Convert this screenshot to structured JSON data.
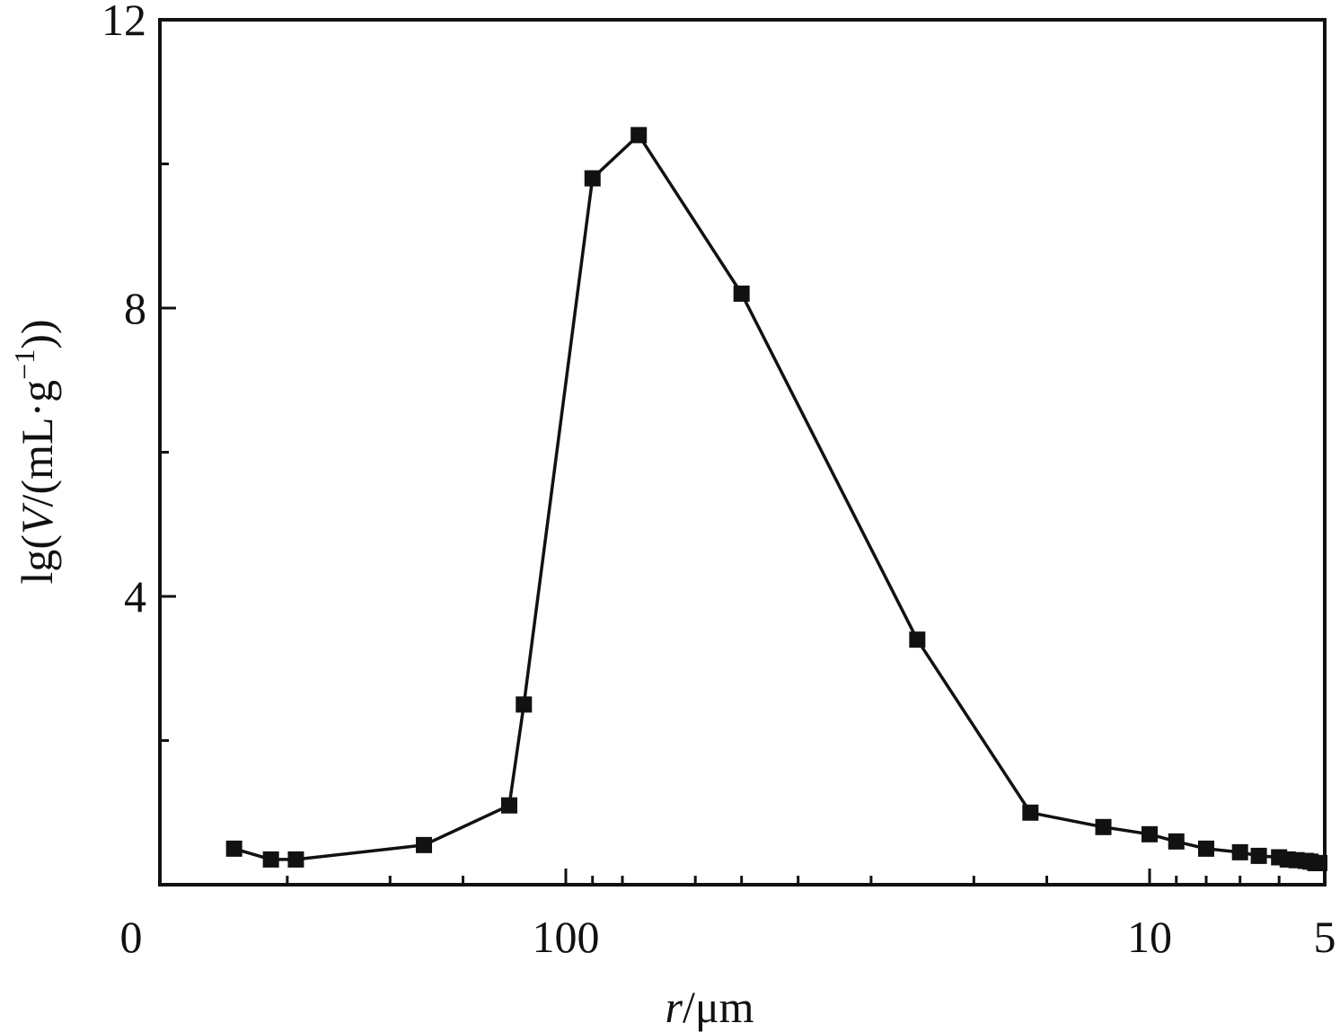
{
  "chart_data": {
    "type": "line",
    "title": "",
    "xlabel": {
      "var": "r",
      "rest": "/μm"
    },
    "ylabel": {
      "pre": "lg(",
      "var": "V",
      "mid": "/(mL·g",
      "sup": "−1",
      "post": "))"
    },
    "x_axis_scale": "log, reversed",
    "x_tick_labels": [
      "0",
      "100",
      "10",
      "5"
    ],
    "ylim": [
      0,
      12
    ],
    "y_ticks": [
      4,
      8,
      12
    ],
    "grid": false,
    "legend": "none",
    "marker": "filled-square",
    "line_color": "#111111",
    "series": [
      {
        "x": [
          370,
          320,
          290,
          175,
          125,
          118,
          90,
          75,
          50,
          25,
          16,
          12,
          10,
          9,
          8,
          7,
          6.5,
          6,
          5.8,
          5.6,
          5.4,
          5.3,
          5.2,
          5.0
        ],
        "y": [
          0.5,
          0.35,
          0.35,
          0.55,
          1.1,
          2.5,
          9.8,
          10.4,
          8.2,
          3.4,
          1.0,
          0.8,
          0.7,
          0.6,
          0.5,
          0.45,
          0.4,
          0.38,
          0.35,
          0.34,
          0.33,
          0.32,
          0.3,
          0.3
        ]
      }
    ]
  }
}
